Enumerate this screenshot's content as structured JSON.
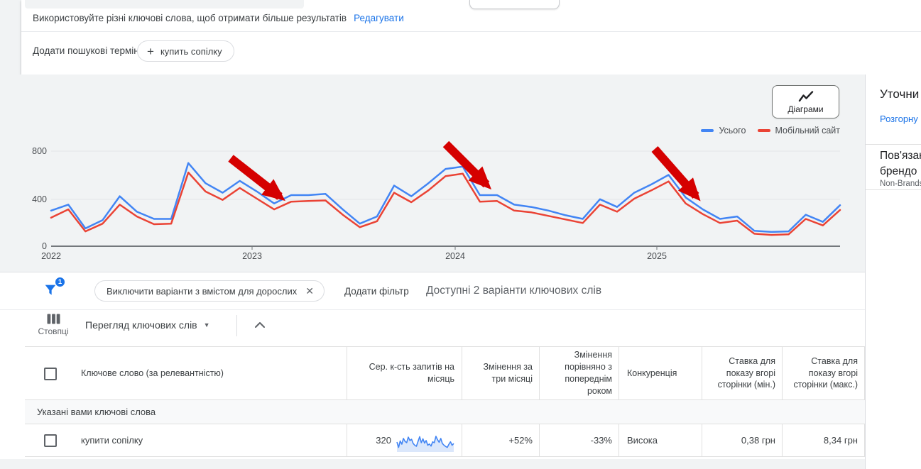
{
  "top": {
    "hint_text": "Використовуйте різні ключові слова, щоб отримати більше результатів",
    "edit_link": "Редагувати",
    "add_terms_label": "Додати пошукові терміни:",
    "plus": "+",
    "term_chip": "купить сопілку"
  },
  "chart": {
    "button_label": "Діаграми",
    "y_ticks": [
      "800",
      "400",
      "0"
    ],
    "x_ticks": [
      "2022",
      "2023",
      "2024",
      "2025"
    ]
  },
  "chart_data": {
    "type": "line",
    "title": "",
    "x_unit": "month",
    "x_range_start": "2022-01",
    "x_tick_labels": [
      "2022",
      "2023",
      "2024",
      "2025"
    ],
    "ylim": [
      0,
      800
    ],
    "y_tick_labels": [
      "0",
      "400",
      "800"
    ],
    "grid": true,
    "legend_position": "top-right",
    "series": [
      {
        "name": "Усього",
        "color": "#4285f4",
        "values": [
          300,
          350,
          150,
          220,
          420,
          290,
          230,
          230,
          700,
          530,
          450,
          550,
          460,
          360,
          430,
          430,
          440,
          310,
          190,
          250,
          510,
          420,
          530,
          650,
          670,
          430,
          430,
          350,
          330,
          300,
          260,
          230,
          395,
          330,
          450,
          520,
          600,
          410,
          310,
          230,
          250,
          130,
          120,
          125,
          265,
          205,
          345
        ]
      },
      {
        "name": "Мобільний сайт",
        "color": "#ea4335",
        "values": [
          240,
          310,
          125,
          190,
          350,
          250,
          185,
          190,
          620,
          460,
          390,
          490,
          400,
          310,
          375,
          380,
          385,
          265,
          160,
          210,
          450,
          370,
          470,
          590,
          610,
          375,
          380,
          300,
          285,
          255,
          225,
          195,
          350,
          290,
          400,
          470,
          545,
          360,
          270,
          195,
          215,
          105,
          95,
          100,
          230,
          175,
          305
        ]
      }
    ],
    "annotations": {
      "arrow_color": "#d50000",
      "arrows": [
        {
          "note": "decline spring 2023",
          "from": [
            325,
            118
          ],
          "to": [
            394,
            172
          ]
        },
        {
          "note": "decline early 2024",
          "from": [
            628,
            98
          ],
          "to": [
            685,
            155
          ]
        },
        {
          "note": "decline spring 2025",
          "from": [
            922,
            105
          ],
          "to": [
            980,
            171
          ]
        }
      ]
    }
  },
  "right_panel": {
    "title": "Уточни",
    "expand_link": "Розгорну",
    "item_line1": "Пов'язан",
    "item_line2": "брендо",
    "item_sub": "Non-Brands"
  },
  "filters": {
    "badge": "1",
    "chip": "Виключити варіанти з вмістом для дорослих",
    "remove": "✕",
    "add_filter": "Додати фільтр",
    "available": "Доступні 2 варіанти ключових слів"
  },
  "toolbar": {
    "columns_label": "Стовпці",
    "view_dropdown": "Перегляд ключових слів",
    "caret": "▼"
  },
  "table": {
    "headers": [
      "Ключове слово (за релевантністю)",
      "Сер. к-сть запитів на місяць",
      "Змінення за три місяці",
      "Змінення порівняно з попереднім роком",
      "Конкуренція",
      "Ставка для показу вгорі сторінки (мін.)",
      "Ставка для показу вгорі сторінки (макс.)"
    ],
    "section_label": "Указані вами ключові слова",
    "row": {
      "keyword": "купити сопілку",
      "avg_monthly_searches": "320",
      "three_month_change": "+52%",
      "yoy_change": "-33%",
      "competition": "Висока",
      "top_of_page_bid_min": "0,38 грн",
      "top_of_page_bid_max": "8,34 грн",
      "sparkline": [
        45,
        20,
        50,
        35,
        62,
        48,
        42,
        68,
        52,
        58,
        38,
        30,
        25,
        48,
        70,
        42,
        60,
        40,
        52,
        30,
        36,
        26,
        46,
        42,
        72,
        56,
        44,
        62,
        38,
        30,
        24,
        20,
        34,
        46,
        30,
        38
      ]
    }
  }
}
